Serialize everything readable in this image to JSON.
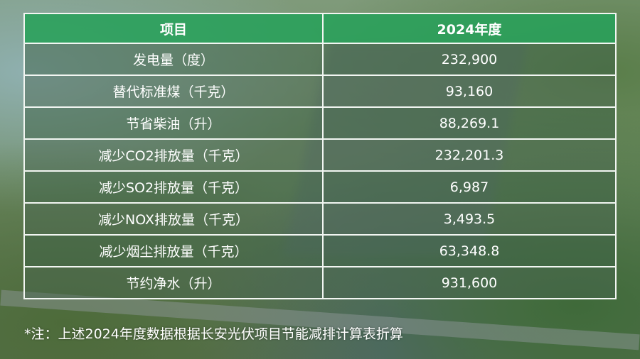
{
  "table": {
    "headers": [
      "项目",
      "2024年度"
    ],
    "rows": [
      [
        "发电量（度）",
        "232,900"
      ],
      [
        "替代标准煤（千克）",
        "93,160"
      ],
      [
        "节省柴油（升）",
        "88,269.1"
      ],
      [
        "减少CO2排放量（千克）",
        "232,201.3"
      ],
      [
        "减少SO2排放量（千克）",
        "6,987"
      ],
      [
        "减少NOX排放量（千克）",
        "3,493.5"
      ],
      [
        "减少烟尘排放量（千克）",
        "63,348.8"
      ],
      [
        "节约净水（升）",
        "931,600"
      ]
    ]
  },
  "note": "*注：上述2024年度数据根据长安光伏项目节能减排计算表折算",
  "colors": {
    "header_bg": "#28a05a",
    "text": "#ffffff"
  }
}
